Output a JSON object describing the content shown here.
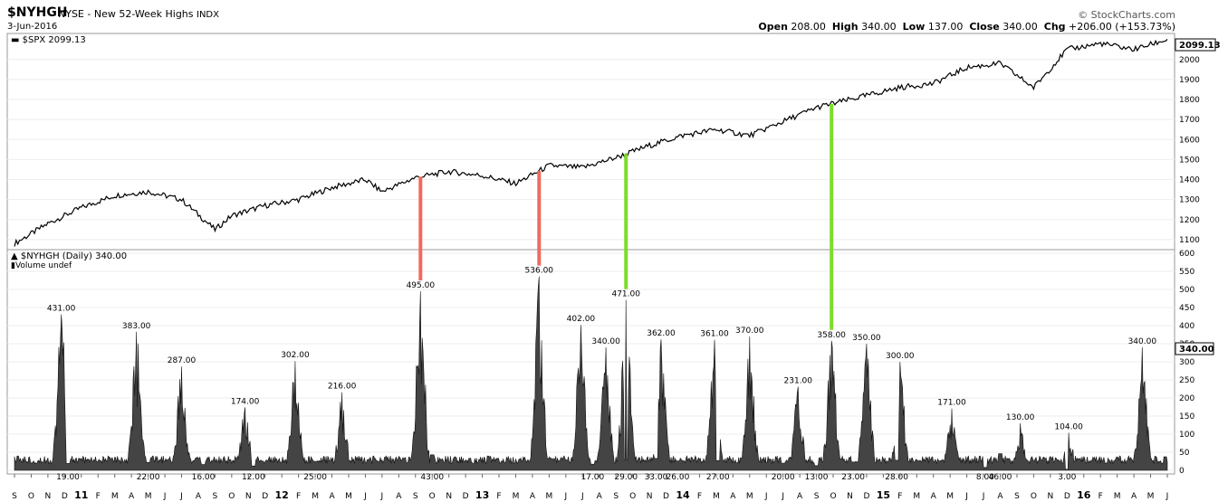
{
  "header": {
    "symbol": "$NYHGH",
    "description": "NYSE - New 52-Week Highs",
    "exchange": "INDX",
    "date": "3-Jun-2016",
    "brand": "© StockCharts.com",
    "open_label": "Open",
    "open": "208.00",
    "high_label": "High",
    "high": "340.00",
    "low_label": "Low",
    "low": "137.00",
    "close_label": "Close",
    "close": "340.00",
    "chg_label": "Chg",
    "chg": "+206.00 (+153.73%)"
  },
  "upper_panel": {
    "legend": "$SPX 2099.13",
    "last_value": "2099.13",
    "y_ticks": [
      1100,
      1200,
      1300,
      1400,
      1500,
      1600,
      1700,
      1800,
      1900,
      2000
    ]
  },
  "lower_panel": {
    "legend": "$NYHGH (Daily) 340.00",
    "legend2": "Volume undef",
    "last_value": "340.00",
    "y_ticks": [
      0,
      50,
      100,
      150,
      200,
      250,
      300,
      350,
      400,
      450,
      500,
      550,
      600
    ]
  },
  "x_axis": [
    "S",
    "O",
    "N",
    "D",
    "11",
    "F",
    "M",
    "A",
    "M",
    "J",
    "J",
    "A",
    "S",
    "O",
    "N",
    "D",
    "12",
    "F",
    "M",
    "A",
    "M",
    "J",
    "J",
    "A",
    "S",
    "O",
    "N",
    "D",
    "13",
    "F",
    "M",
    "A",
    "M",
    "J",
    "J",
    "A",
    "S",
    "O",
    "N",
    "D",
    "14",
    "F",
    "M",
    "A",
    "M",
    "J",
    "J",
    "A",
    "S",
    "O",
    "N",
    "D",
    "15",
    "F",
    "M",
    "A",
    "M",
    "J",
    "J",
    "A",
    "S",
    "O",
    "N",
    "D",
    "16",
    "F",
    "M",
    "A",
    "M",
    "J"
  ],
  "colors": {
    "red": "#f06a5e",
    "green": "#7ddc2a",
    "fill": "#444444"
  },
  "chart_data": {
    "type": "line",
    "series": [
      {
        "name": "$SPX",
        "x": [
          0,
          2,
          4,
          6,
          8,
          10,
          12,
          13,
          15,
          17,
          19,
          21,
          22,
          24,
          26,
          28,
          30,
          32,
          34,
          36,
          38,
          40,
          42,
          44,
          46,
          48,
          50,
          52,
          53,
          55,
          57,
          59,
          61,
          63,
          65,
          67,
          69
        ],
        "values": [
          1080,
          1180,
          1260,
          1320,
          1340,
          1300,
          1150,
          1220,
          1270,
          1300,
          1360,
          1400,
          1340,
          1410,
          1440,
          1420,
          1380,
          1470,
          1460,
          1510,
          1570,
          1620,
          1650,
          1620,
          1690,
          1760,
          1800,
          1840,
          1860,
          1880,
          1960,
          1980,
          1860,
          2050,
          2080,
          2050,
          2100
        ]
      }
    ],
    "nyhgh": {
      "name": "$NYHGH (Daily)",
      "labeled_peaks": [
        {
          "x": 2.8,
          "value": 431
        },
        {
          "x": 7.3,
          "value": 383
        },
        {
          "x": 10.0,
          "value": 287
        },
        {
          "x": 13.8,
          "value": 174
        },
        {
          "x": 16.8,
          "value": 302
        },
        {
          "x": 19.6,
          "value": 216
        },
        {
          "x": 24.3,
          "value": 495
        },
        {
          "x": 31.4,
          "value": 536
        },
        {
          "x": 33.9,
          "value": 402
        },
        {
          "x": 35.4,
          "value": 340
        },
        {
          "x": 36.6,
          "value": 471
        },
        {
          "x": 38.7,
          "value": 362
        },
        {
          "x": 41.9,
          "value": 361
        },
        {
          "x": 44.0,
          "value": 370
        },
        {
          "x": 46.9,
          "value": 231
        },
        {
          "x": 48.9,
          "value": 358
        },
        {
          "x": 51.0,
          "value": 350
        },
        {
          "x": 53.0,
          "value": 300
        },
        {
          "x": 56.1,
          "value": 171
        },
        {
          "x": 60.2,
          "value": 130
        },
        {
          "x": 63.1,
          "value": 104
        },
        {
          "x": 67.5,
          "value": 340
        }
      ],
      "labeled_troughs": [
        {
          "x": 3.2,
          "value": 19
        },
        {
          "x": 8.0,
          "value": 22
        },
        {
          "x": 11.3,
          "value": 16
        },
        {
          "x": 14.3,
          "value": 12
        },
        {
          "x": 18.0,
          "value": 25
        },
        {
          "x": 25.0,
          "value": 43
        },
        {
          "x": 34.6,
          "value": 17
        },
        {
          "x": 36.6,
          "value": 29
        },
        {
          "x": 38.4,
          "value": 33
        },
        {
          "x": 39.7,
          "value": 26
        },
        {
          "x": 42.1,
          "value": 27
        },
        {
          "x": 46.0,
          "value": 20
        },
        {
          "x": 48.0,
          "value": 13
        },
        {
          "x": 50.2,
          "value": 23
        },
        {
          "x": 52.8,
          "value": 28
        },
        {
          "x": 58.1,
          "value": 8
        },
        {
          "x": 59.0,
          "value": 46
        },
        {
          "x": 63.0,
          "value": 3
        }
      ]
    }
  }
}
